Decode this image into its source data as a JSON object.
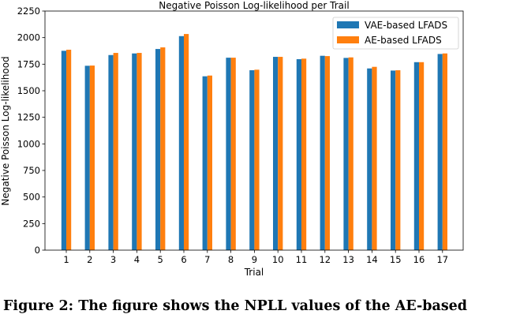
{
  "chart_data": {
    "type": "bar",
    "title": "Negative Poisson Log-likelihood per Trail",
    "xlabel": "Trial",
    "ylabel": "Negative Poisson Log-likelihood",
    "categories": [
      "1",
      "2",
      "3",
      "4",
      "5",
      "6",
      "7",
      "8",
      "9",
      "10",
      "11",
      "12",
      "13",
      "14",
      "15",
      "16",
      "17"
    ],
    "series": [
      {
        "name": "VAE-based LFADS",
        "color": "#1f77b4",
        "values": [
          1876,
          1735,
          1836,
          1851,
          1893,
          2014,
          1636,
          1811,
          1693,
          1819,
          1797,
          1829,
          1809,
          1710,
          1690,
          1769,
          1846
        ]
      },
      {
        "name": "AE-based LFADS",
        "color": "#ff7f0e",
        "values": [
          1886,
          1737,
          1856,
          1856,
          1908,
          2034,
          1643,
          1811,
          1698,
          1819,
          1802,
          1826,
          1814,
          1725,
          1693,
          1769,
          1851
        ]
      }
    ],
    "ylim": [
      0,
      2250
    ],
    "yticks": [
      0,
      250,
      500,
      750,
      1000,
      1250,
      1500,
      1750,
      2000,
      2250
    ],
    "grid": false,
    "legend": "top-right"
  },
  "caption": "Figure 2: The figure shows the NPLL values of the AE-based"
}
